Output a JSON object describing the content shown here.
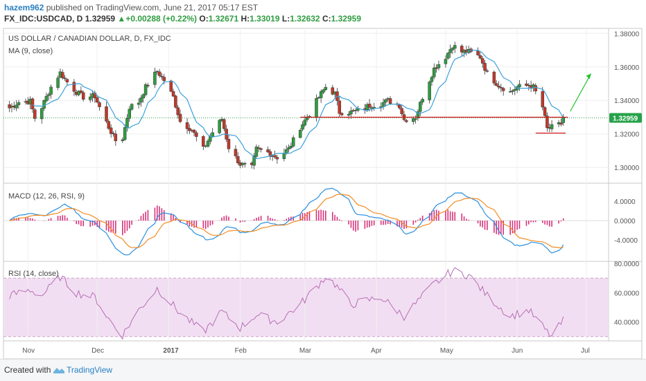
{
  "header": {
    "author": "hazem962",
    "published_text": "published on TradingView.com, June 21, 2017 05:17 EST",
    "symbol": "FX_IDC:USDCAD, D",
    "last": "1.32959",
    "change": "+0.00288 (+0.22%)",
    "o_label": "O:",
    "o_value": "1.32671",
    "h_label": "H:",
    "h_value": "1.33019",
    "l_label": "L:",
    "l_value": "1.32632",
    "c_label": "C:",
    "c_value": "1.32959"
  },
  "footer": {
    "created_with": "Created with",
    "brand": "TradingView"
  },
  "colors": {
    "up": "#2e9d40",
    "down": "#c0392b",
    "ma": "#3c9fd8",
    "macd": "#2a8fe0",
    "signal": "#f28b22",
    "hist": "#d6337a",
    "rsi_line": "#b46fb5",
    "rsi_band": "#f2def2",
    "hline": "#d11a1a",
    "arrow": "#22c32a",
    "price_tag": "#27a24a"
  },
  "chart_data": [
    {
      "type": "candlestick",
      "title": "US DOLLAR / CANADIAN DOLLAR, D, FX_IDC",
      "indicator_label": "MA (9, close)",
      "price_ticks": [
        "1.38000",
        "1.36000",
        "1.34000",
        "1.32000",
        "1.30000"
      ],
      "ylim": [
        1.291,
        1.383
      ],
      "last_price_tag": "1.32959",
      "last_price": 1.32959,
      "x_ticks": [
        "Nov",
        "Dec",
        "2017",
        "Feb",
        "Mar",
        "Apr",
        "May",
        "Jun",
        "Jul"
      ],
      "anchors": [
        [
          "Oct 24, 2016",
          1.3355
        ],
        [
          "Oct 28, 2016",
          1.339
        ],
        [
          "Nov 2, 2016",
          1.3395
        ],
        [
          "Nov 4, 2016",
          1.3295
        ],
        [
          "Nov 7, 2016",
          1.336
        ],
        [
          "Nov 11, 2016",
          1.348
        ],
        [
          "Nov 15, 2016",
          1.3565
        ],
        [
          "Nov 18, 2016",
          1.351
        ],
        [
          "Nov 22, 2016",
          1.345
        ],
        [
          "Nov 25, 2016",
          1.342
        ],
        [
          "Nov 30, 2016",
          1.3425
        ],
        [
          "Dec 2, 2016",
          1.336
        ],
        [
          "Dec 6, 2016",
          1.324
        ],
        [
          "Dec 9, 2016",
          1.316
        ],
        [
          "Dec 12, 2016",
          1.3175
        ],
        [
          "Dec 15, 2016",
          1.336
        ],
        [
          "Dec 19, 2016",
          1.339
        ],
        [
          "Dec 22, 2016",
          1.348
        ],
        [
          "Dec 27, 2016",
          1.3575
        ],
        [
          "Dec 30, 2016",
          1.352
        ],
        [
          "Jan 3, 2017",
          1.342
        ],
        [
          "Jan 6, 2017",
          1.3275
        ],
        [
          "Jan 11, 2017",
          1.3225
        ],
        [
          "Jan 16, 2017",
          1.311
        ],
        [
          "Jan 20, 2017",
          1.321
        ],
        [
          "Jan 24, 2017",
          1.329
        ],
        [
          "Jan 27, 2017",
          1.312
        ],
        [
          "Feb 1, 2017",
          1.302
        ],
        [
          "Feb 6, 2017",
          1.3
        ],
        [
          "Feb 8, 2017",
          1.311
        ],
        [
          "Feb 13, 2017",
          1.309
        ],
        [
          "Feb 17, 2017",
          1.306
        ],
        [
          "Feb 22, 2017",
          1.311
        ],
        [
          "Feb 27, 2017",
          1.324
        ],
        [
          "Mar 3, 2017",
          1.332
        ],
        [
          "Mar 7, 2017",
          1.342
        ],
        [
          "Mar 10, 2017",
          1.348
        ],
        [
          "Mar 14, 2017",
          1.344
        ],
        [
          "Mar 16, 2017",
          1.333
        ],
        [
          "Mar 21, 2017",
          1.333
        ],
        [
          "Mar 24, 2017",
          1.334
        ],
        [
          "Mar 29, 2017",
          1.337
        ],
        [
          "Apr 3, 2017",
          1.338
        ],
        [
          "Apr 6, 2017",
          1.34
        ],
        [
          "Apr 11, 2017",
          1.337
        ],
        [
          "Apr 13, 2017",
          1.3285
        ],
        [
          "Apr 18, 2017",
          1.33
        ],
        [
          "Apr 21, 2017",
          1.342
        ],
        [
          "Apr 26, 2017",
          1.359
        ],
        [
          "May 1, 2017",
          1.366
        ],
        [
          "May 4, 2017",
          1.373
        ],
        [
          "May 8, 2017",
          1.369
        ],
        [
          "May 11, 2017",
          1.369
        ],
        [
          "May 16, 2017",
          1.366
        ],
        [
          "May 19, 2017",
          1.356
        ],
        [
          "May 24, 2017",
          1.349
        ],
        [
          "May 29, 2017",
          1.345
        ],
        [
          "Jun 1, 2017",
          1.348
        ],
        [
          "Jun 6, 2017",
          1.349
        ],
        [
          "Jun 8, 2017",
          1.348
        ],
        [
          "Jun 12, 2017",
          1.336
        ],
        [
          "Jun 14, 2017",
          1.323
        ],
        [
          "Jun 16, 2017",
          1.324
        ],
        [
          "Jun 20, 2017",
          1.326
        ],
        [
          "Jun 21, 2017",
          1.3296
        ]
      ],
      "support_line": 1.33,
      "low_line": 1.3205
    },
    {
      "type": "line",
      "title": "MACD (12, 26, RSI, 9)",
      "ticks": [
        "4.0000",
        "0.0000",
        "-4.0000"
      ],
      "ylim": [
        -8.3,
        7.6
      ]
    },
    {
      "type": "line",
      "title": "RSI (14, close)",
      "ticks": [
        "80.0000",
        "60.0000",
        "40.0000"
      ],
      "ylim": [
        27.5,
        81
      ],
      "band": [
        30,
        70
      ],
      "anchors": [
        [
          "Oct 24, 2016",
          58
        ],
        [
          "Nov 2, 2016",
          62
        ],
        [
          "Nov 7, 2016",
          58
        ],
        [
          "Nov 15, 2016",
          71
        ],
        [
          "Nov 22, 2016",
          60
        ],
        [
          "Nov 30, 2016",
          57
        ],
        [
          "Dec 6, 2016",
          42
        ],
        [
          "Dec 12, 2016",
          31
        ],
        [
          "Dec 19, 2016",
          48
        ],
        [
          "Dec 27, 2016",
          63
        ],
        [
          "Jan 6, 2017",
          46
        ],
        [
          "Jan 16, 2017",
          33
        ],
        [
          "Jan 24, 2017",
          47
        ],
        [
          "Feb 1, 2017",
          36
        ],
        [
          "Feb 8, 2017",
          45
        ],
        [
          "Feb 17, 2017",
          40
        ],
        [
          "Feb 27, 2017",
          52
        ],
        [
          "Mar 10, 2017",
          71
        ],
        [
          "Mar 14, 2017",
          66
        ],
        [
          "Mar 21, 2017",
          52
        ],
        [
          "Apr 3, 2017",
          57
        ],
        [
          "Apr 13, 2017",
          44
        ],
        [
          "Apr 26, 2017",
          66
        ],
        [
          "May 4, 2017",
          75
        ],
        [
          "May 11, 2017",
          72
        ],
        [
          "May 19, 2017",
          58
        ],
        [
          "May 29, 2017",
          44
        ],
        [
          "Jun 6, 2017",
          48
        ],
        [
          "Jun 14, 2017",
          33
        ],
        [
          "Jun 16, 2017",
          30
        ],
        [
          "Jun 21, 2017",
          41
        ]
      ]
    }
  ]
}
